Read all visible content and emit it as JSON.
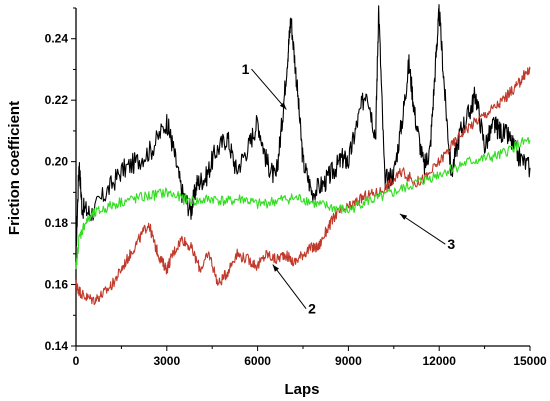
{
  "chart_data": {
    "type": "line",
    "title": "",
    "xlabel": "Laps",
    "ylabel": "Friction coefficient",
    "xlim": [
      0,
      15000
    ],
    "ylim": [
      0.14,
      0.25
    ],
    "grid": false,
    "x_ticks": [
      0,
      3000,
      6000,
      9000,
      12000,
      15000
    ],
    "x_tick_labels": [
      "0",
      "3000",
      "6000",
      "9000",
      "12000",
      "15000"
    ],
    "y_ticks": [
      0.14,
      0.16,
      0.18,
      0.2,
      0.22,
      0.24
    ],
    "y_tick_labels": [
      "0.14",
      "0.16",
      "0.18",
      "0.20",
      "0.22",
      "0.24"
    ],
    "series": [
      {
        "color": "#000000",
        "x": [
          0,
          100,
          200,
          500,
          1000,
          1500,
          2000,
          2500,
          3000,
          3200,
          3500,
          3800,
          4000,
          4300,
          4600,
          5000,
          5300,
          5700,
          6000,
          6300,
          6600,
          6800,
          7000,
          7100,
          7300,
          7500,
          7800,
          8200,
          8500,
          8800,
          9000,
          9300,
          9600,
          9900,
          10000,
          10200,
          10500,
          10800,
          11000,
          11200,
          11500,
          11700,
          11900,
          12000,
          12200,
          12400,
          12700,
          13000,
          13200,
          13500,
          13800,
          14000,
          14300,
          14600,
          15000
        ],
        "y": [
          0.17,
          0.2,
          0.185,
          0.183,
          0.19,
          0.197,
          0.2,
          0.204,
          0.213,
          0.205,
          0.19,
          0.184,
          0.193,
          0.195,
          0.203,
          0.208,
          0.197,
          0.205,
          0.213,
          0.2,
          0.194,
          0.212,
          0.235,
          0.247,
          0.225,
          0.2,
          0.19,
          0.193,
          0.197,
          0.201,
          0.2,
          0.213,
          0.224,
          0.208,
          0.25,
          0.194,
          0.196,
          0.215,
          0.232,
          0.215,
          0.198,
          0.204,
          0.235,
          0.249,
          0.22,
          0.196,
          0.21,
          0.216,
          0.222,
          0.205,
          0.212,
          0.21,
          0.208,
          0.202,
          0.198
        ]
      },
      {
        "color": "#c0392b",
        "x": [
          0,
          100,
          300,
          600,
          900,
          1200,
          1500,
          1800,
          2100,
          2400,
          2600,
          2800,
          3000,
          3200,
          3500,
          3800,
          4100,
          4400,
          4700,
          5000,
          5300,
          5700,
          6000,
          6300,
          6600,
          6900,
          7200,
          7500,
          7800,
          8000,
          8300,
          8600,
          9000,
          9300,
          9600,
          10000,
          10400,
          10800,
          11200,
          11600,
          12000,
          12400,
          12800,
          13200,
          13600,
          14000,
          14300,
          14600,
          14800,
          15000
        ],
        "y": [
          0.16,
          0.158,
          0.156,
          0.155,
          0.157,
          0.16,
          0.165,
          0.17,
          0.175,
          0.18,
          0.173,
          0.168,
          0.165,
          0.17,
          0.175,
          0.172,
          0.165,
          0.17,
          0.16,
          0.164,
          0.17,
          0.168,
          0.166,
          0.17,
          0.168,
          0.17,
          0.167,
          0.17,
          0.172,
          0.172,
          0.178,
          0.183,
          0.185,
          0.187,
          0.189,
          0.19,
          0.193,
          0.197,
          0.193,
          0.195,
          0.2,
          0.205,
          0.21,
          0.213,
          0.216,
          0.219,
          0.222,
          0.225,
          0.228,
          0.23
        ]
      },
      {
        "color": "#33dd22",
        "x": [
          0,
          100,
          300,
          600,
          1000,
          1500,
          2000,
          2500,
          3000,
          3500,
          4000,
          4500,
          5000,
          5500,
          6000,
          6500,
          7000,
          7500,
          8000,
          8500,
          9000,
          9500,
          10000,
          10500,
          11000,
          11500,
          12000,
          12500,
          13000,
          13500,
          14000,
          14500,
          15000
        ],
        "y": [
          0.165,
          0.175,
          0.18,
          0.183,
          0.185,
          0.187,
          0.188,
          0.189,
          0.19,
          0.188,
          0.187,
          0.188,
          0.187,
          0.188,
          0.186,
          0.187,
          0.188,
          0.188,
          0.186,
          0.185,
          0.184,
          0.187,
          0.188,
          0.19,
          0.192,
          0.194,
          0.196,
          0.198,
          0.2,
          0.201,
          0.202,
          0.205,
          0.207
        ]
      }
    ],
    "annotations": [
      {
        "text": "1",
        "x": 5600,
        "y": 0.2285,
        "point_x": 6950,
        "point_y": 0.217
      },
      {
        "text": "2",
        "x": 7800,
        "y": 0.1505,
        "point_x": 6500,
        "point_y": 0.1665
      },
      {
        "text": "3",
        "x": 12400,
        "y": 0.1715,
        "point_x": 10700,
        "point_y": 0.183
      }
    ]
  }
}
